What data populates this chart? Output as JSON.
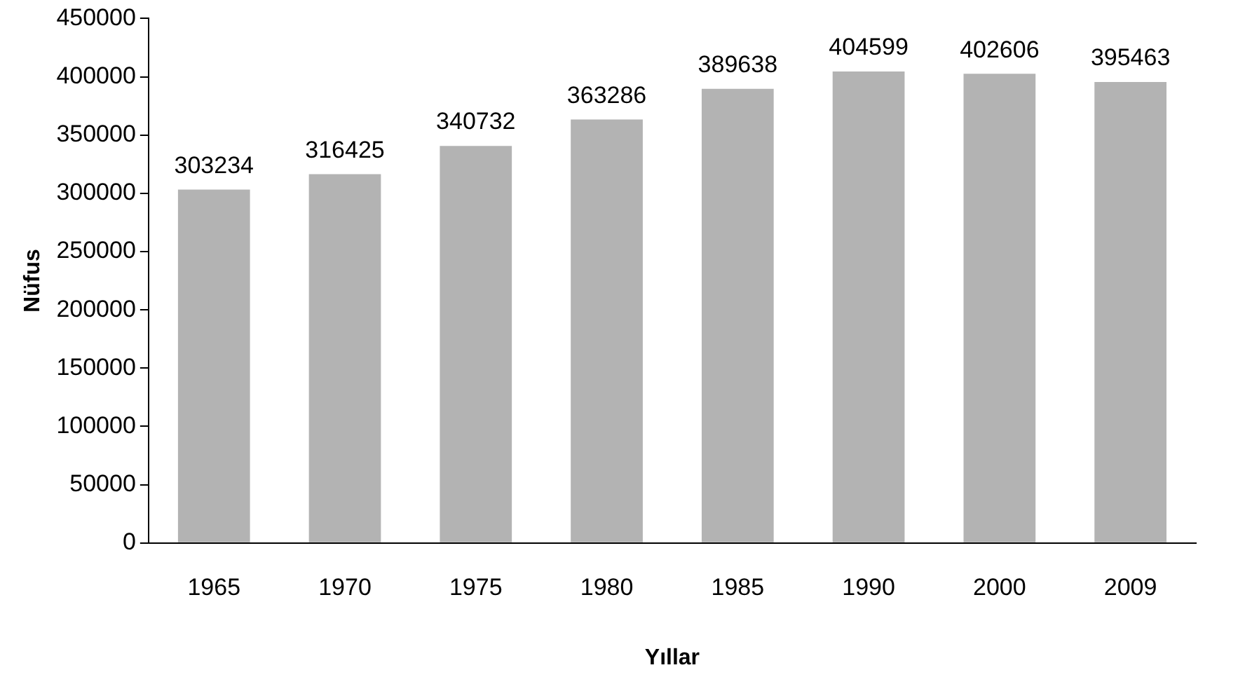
{
  "chart_data": {
    "type": "bar",
    "xlabel": "Yıllar",
    "ylabel": "Nüfus",
    "categories": [
      "1965",
      "1970",
      "1975",
      "1980",
      "1985",
      "1990",
      "2000",
      "2009"
    ],
    "values": [
      303234,
      316425,
      340732,
      363286,
      389638,
      404599,
      402606,
      395463
    ],
    "color": "#b3b3b3",
    "ylim": [
      0,
      450000
    ],
    "yticks": [
      0,
      50000,
      100000,
      150000,
      200000,
      250000,
      300000,
      350000,
      400000,
      450000
    ],
    "grid": false,
    "data_labels": true,
    "legend": false
  }
}
